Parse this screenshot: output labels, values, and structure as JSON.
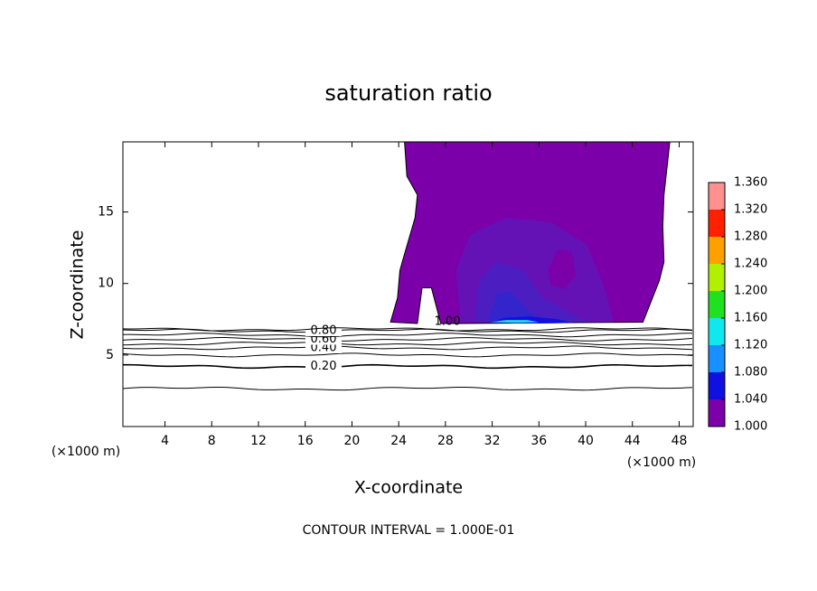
{
  "chart_data": {
    "type": "contour",
    "title": "saturation ratio",
    "x_label": "X-coordinate",
    "y_label": "Z-coordinate",
    "x_unit": "(×1000 m)",
    "footer": "CONTOUR INTERVAL = 1.000E-01",
    "xlim": [
      0.4,
      49.2
    ],
    "xticks": [
      4,
      8,
      12,
      16,
      20,
      24,
      28,
      32,
      36,
      40,
      44,
      48
    ],
    "ylim": [
      0,
      19.9
    ],
    "yticks": [
      5,
      10,
      15
    ],
    "contour_levels": [
      0.1,
      0.2,
      0.3,
      0.4,
      0.5,
      0.6,
      0.7,
      0.8,
      0.9
    ],
    "contour_heights": [
      2.65,
      4.2,
      5.0,
      5.5,
      5.8,
      6.1,
      6.4,
      6.7,
      6.8
    ],
    "value_labels": [
      null,
      "0.20",
      null,
      "0.40",
      null,
      "0.60",
      null,
      "0.80",
      null
    ],
    "cloud_level": 1.0,
    "cloud_label": "1.00",
    "regions": [
      {
        "min": 1.0,
        "color": "#7c00aa",
        "x": [
          23.3,
          23.9,
          24.1,
          24.3,
          25.4,
          25.6,
          24.7,
          24.5,
          47.2,
          47.0,
          46.7,
          46.6,
          46.7,
          46.3,
          44.9,
          28.5,
          27.6,
          26.8,
          26.0,
          25.6
        ],
        "z": [
          7.3,
          9.0,
          10.9,
          11.5,
          14.6,
          16.2,
          17.5,
          19.9,
          19.9,
          18.4,
          16.2,
          14.0,
          11.5,
          10.2,
          7.3,
          7.2,
          7.2,
          9.7,
          9.7,
          7.2
        ]
      },
      {
        "min": 1.01,
        "color": "#6412b6",
        "x": [
          29.3,
          28.9,
          30.1,
          33.2,
          37.0,
          40.1,
          41.6,
          42.4
        ],
        "z": [
          7.3,
          10.9,
          13.4,
          14.6,
          14.3,
          12.7,
          9.7,
          7.3
        ]
      },
      {
        "min": 1.0,
        "color": "#7c00aa",
        "x": [
          36.8,
          37.6,
          38.8,
          39.2,
          38.2,
          37.0
        ],
        "z": [
          11.0,
          12.4,
          12.2,
          10.6,
          9.6,
          9.9
        ]
      },
      {
        "min": 1.02,
        "color": "#4c1ec2",
        "x": [
          30.5,
          30.9,
          32.4,
          34.7,
          36.3,
          40.1
        ],
        "z": [
          7.3,
          10.2,
          11.5,
          10.9,
          9.0,
          7.3
        ]
      },
      {
        "min": 1.03,
        "color": "#3424cc",
        "x": [
          31.6,
          32.4,
          33.6,
          35.0,
          36.2
        ],
        "z": [
          7.3,
          9.3,
          9.4,
          8.2,
          7.3
        ]
      },
      {
        "min": 1.04,
        "color": "#1010e0",
        "x": [
          31.8,
          33.0,
          35.2,
          37.6,
          39.0,
          36.0
        ],
        "z": [
          7.25,
          7.6,
          7.7,
          7.5,
          7.25,
          7.2
        ]
      },
      {
        "min": 1.08,
        "color": "#20d8f0",
        "x": [
          31.8,
          33.2,
          35.0,
          36.0,
          34.0
        ],
        "z": [
          7.3,
          7.45,
          7.45,
          7.3,
          7.25
        ]
      }
    ],
    "colorbar_ticks": [
      {
        "value": 1.0,
        "label": "1.000"
      },
      {
        "value": 1.04,
        "label": "1.040"
      },
      {
        "value": 1.08,
        "label": "1.080"
      },
      {
        "value": 1.12,
        "label": "1.120"
      },
      {
        "value": 1.16,
        "label": "1.160"
      },
      {
        "value": 1.2,
        "label": "1.200"
      },
      {
        "value": 1.24,
        "label": "1.240"
      },
      {
        "value": 1.28,
        "label": "1.280"
      },
      {
        "value": 1.32,
        "label": "1.320"
      },
      {
        "value": 1.36,
        "label": "1.360"
      }
    ],
    "colorbar_colors": [
      "#7c00aa",
      "#1010e0",
      "#1890ff",
      "#10e8f0",
      "#20e020",
      "#b0f000",
      "#ffa000",
      "#ff2000",
      "#ff9090"
    ]
  }
}
